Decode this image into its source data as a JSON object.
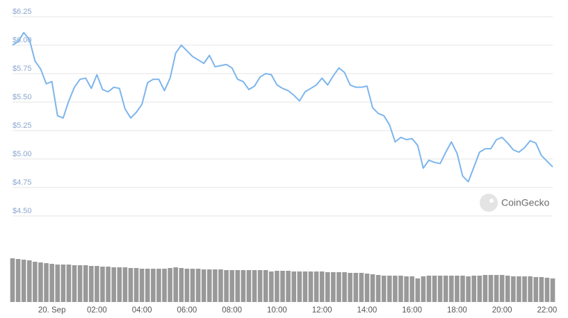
{
  "chart_data": {
    "type": "line",
    "watermark": "CoinGecko",
    "x": [
      -1.75,
      -1.5,
      -1.25,
      -1,
      -0.75,
      -0.5,
      -0.25,
      0,
      0.25,
      0.5,
      0.75,
      1,
      1.25,
      1.5,
      1.75,
      2,
      2.25,
      2.5,
      2.75,
      3,
      3.25,
      3.5,
      3.75,
      4,
      4.25,
      4.5,
      4.75,
      5,
      5.25,
      5.5,
      5.75,
      6,
      6.25,
      6.5,
      6.75,
      7,
      7.25,
      7.5,
      7.75,
      8,
      8.25,
      8.5,
      8.75,
      9,
      9.25,
      9.5,
      9.75,
      10,
      10.25,
      10.5,
      10.75,
      11,
      11.25,
      11.5,
      11.75,
      12,
      12.25,
      12.5,
      12.75,
      13,
      13.25,
      13.5,
      13.75,
      14,
      14.25,
      14.5,
      14.75,
      15,
      15.25,
      15.5,
      15.75,
      16,
      16.25,
      16.5,
      16.75,
      17,
      17.25,
      17.5,
      17.75,
      18,
      18.25,
      18.5,
      18.75,
      19,
      19.25,
      19.5,
      19.75,
      20,
      20.25,
      20.5,
      20.75,
      21,
      21.25,
      21.5,
      21.75,
      22,
      22.25
    ],
    "series": [
      {
        "color": "#7cb5ec",
        "values": [
          6.0,
          6.03,
          6.11,
          6.05,
          5.86,
          5.79,
          5.66,
          5.68,
          5.38,
          5.36,
          5.51,
          5.63,
          5.7,
          5.71,
          5.62,
          5.74,
          5.61,
          5.59,
          5.63,
          5.62,
          5.44,
          5.36,
          5.41,
          5.48,
          5.67,
          5.7,
          5.7,
          5.6,
          5.71,
          5.93,
          6.0,
          5.95,
          5.9,
          5.87,
          5.84,
          5.91,
          5.81,
          5.82,
          5.83,
          5.8,
          5.7,
          5.68,
          5.61,
          5.64,
          5.72,
          5.75,
          5.74,
          5.65,
          5.62,
          5.6,
          5.56,
          5.51,
          5.59,
          5.62,
          5.65,
          5.71,
          5.65,
          5.73,
          5.8,
          5.76,
          5.65,
          5.63,
          5.63,
          5.64,
          5.45,
          5.4,
          5.38,
          5.3,
          5.15,
          5.19,
          5.17,
          5.18,
          5.12,
          4.92,
          4.99,
          4.97,
          4.96,
          5.06,
          5.15,
          5.05,
          4.85,
          4.8,
          4.93,
          5.06,
          5.09,
          5.09,
          5.17,
          5.19,
          5.14,
          5.08,
          5.06,
          5.1,
          5.16,
          5.14,
          5.03,
          4.98,
          4.93
        ]
      },
      {
        "type": "bar",
        "axis": "y2",
        "color": "#999999",
        "values": [
          63,
          62,
          61,
          60,
          58,
          57,
          56,
          55,
          54,
          54,
          54,
          53,
          53,
          53,
          52,
          52,
          51,
          51,
          50,
          50,
          50,
          49,
          49,
          48,
          48,
          48,
          48,
          48,
          49,
          50,
          49,
          48,
          48,
          48,
          47,
          47,
          47,
          47,
          46,
          46,
          46,
          46,
          46,
          46,
          46,
          46,
          44,
          45,
          45,
          45,
          44,
          44,
          44,
          44,
          44,
          44,
          43,
          43,
          43,
          43,
          42,
          42,
          42,
          41,
          40,
          39,
          38,
          38,
          38,
          38,
          37,
          37,
          34,
          37,
          38,
          38,
          38,
          38,
          38,
          38,
          38,
          37,
          38,
          38,
          39,
          39,
          39,
          39,
          38,
          37,
          37,
          37,
          37,
          36,
          36,
          35,
          34
        ]
      }
    ],
    "xlim": [
      -1.75,
      22.25
    ],
    "xticks": [
      {
        "value": 0,
        "label": "20. Sep"
      },
      {
        "value": 2,
        "label": "02:00"
      },
      {
        "value": 4,
        "label": "04:00"
      },
      {
        "value": 6,
        "label": "06:00"
      },
      {
        "value": 8,
        "label": "08:00"
      },
      {
        "value": 10,
        "label": "10:00"
      },
      {
        "value": 12,
        "label": "12:00"
      },
      {
        "value": 14,
        "label": "14:00"
      },
      {
        "value": 16,
        "label": "16:00"
      },
      {
        "value": 18,
        "label": "18:00"
      },
      {
        "value": 20,
        "label": "20:00"
      },
      {
        "value": 22,
        "label": "22:00"
      }
    ],
    "ylim": [
      4.5,
      6.25
    ],
    "yticks": [
      {
        "value": 4.5,
        "label": "$4.50"
      },
      {
        "value": 4.75,
        "label": "$4.75"
      },
      {
        "value": 5,
        "label": "$5.00"
      },
      {
        "value": 5.25,
        "label": "$5.25"
      },
      {
        "value": 5.5,
        "label": "$5.50"
      },
      {
        "value": 5.75,
        "label": "$5.75"
      },
      {
        "value": 6,
        "label": "$6.00"
      },
      {
        "value": 6.25,
        "label": "$6.25"
      }
    ],
    "y2lim": [
      0,
      100
    ],
    "grid": true
  }
}
